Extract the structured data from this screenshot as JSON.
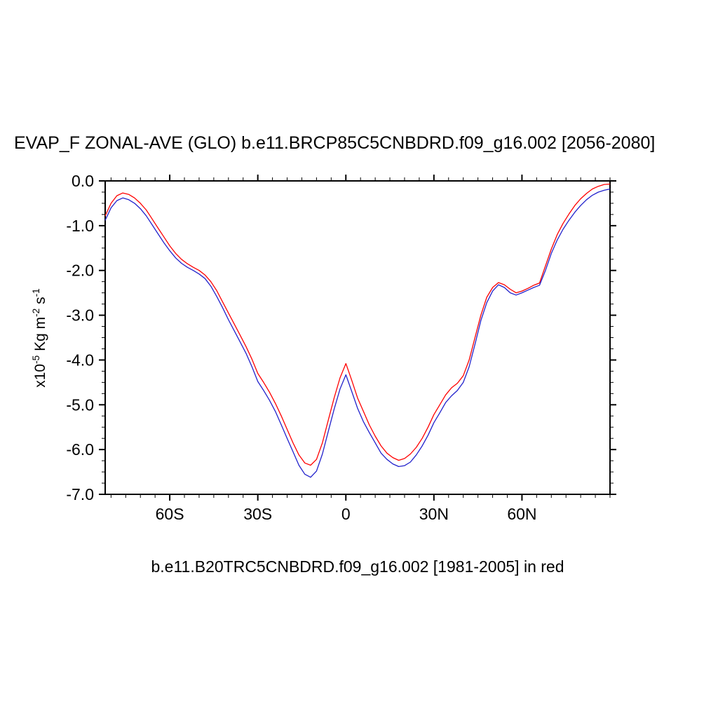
{
  "chart": {
    "title": "EVAP_F ZONAL-AVE (GLO) b.e11.BRCP85C5CNBDRD.f09_g16.002 [2056-2080]",
    "subtitle": "b.e11.B20TRC5CNBDRD.f09_g16.002 [1981-2005] in red",
    "ylabel_parts": [
      "x10",
      "-5",
      " Kg m",
      "-2",
      " s",
      "-1"
    ]
  },
  "chart_data": {
    "type": "line",
    "title": "EVAP_F ZONAL-AVE (GLO) b.e11.BRCP85C5CNBDRD.f09_g16.002 [2056-2080]",
    "subtitle": "b.e11.B20TRC5CNBDRD.f09_g16.002 [1981-2005] in red",
    "xlabel": "",
    "ylabel": "x10^-5 Kg m^-2 s^-1",
    "xlim": [
      -82,
      90
    ],
    "ylim": [
      -7,
      0
    ],
    "grid": false,
    "legend": "none",
    "x_major_ticks": [
      -60,
      -30,
      0,
      30,
      60
    ],
    "x_major_labels": [
      "60S",
      "30S",
      "0",
      "30N",
      "60N"
    ],
    "x_minor_step": 5,
    "y_major_ticks": [
      0,
      -1,
      -2,
      -3,
      -4,
      -5,
      -6,
      -7
    ],
    "y_major_labels": [
      "0.0",
      "-1.0",
      "-2.0",
      "-3.0",
      "-4.0",
      "-5.0",
      "-6.0",
      "-7.0"
    ],
    "y_minor_step": 0.25,
    "x": [
      -82,
      -80,
      -78,
      -76,
      -74,
      -72,
      -70,
      -68,
      -66,
      -64,
      -62,
      -60,
      -58,
      -56,
      -54,
      -52,
      -50,
      -48,
      -46,
      -44,
      -42,
      -40,
      -38,
      -36,
      -34,
      -32,
      -30,
      -28,
      -26,
      -24,
      -22,
      -20,
      -18,
      -16,
      -14,
      -12,
      -10,
      -8,
      -6,
      -4,
      -2,
      0,
      2,
      4,
      6,
      8,
      10,
      12,
      14,
      16,
      18,
      20,
      22,
      24,
      26,
      28,
      30,
      32,
      34,
      36,
      38,
      40,
      42,
      44,
      46,
      48,
      50,
      52,
      54,
      56,
      58,
      60,
      62,
      64,
      66,
      68,
      70,
      72,
      74,
      76,
      78,
      80,
      82,
      84,
      86,
      88,
      90
    ],
    "series": [
      {
        "name": "b.e11.B20TRC5CNBDRD.f09_g16.002 [1981-2005]",
        "color": "#ff0000",
        "values": [
          -0.78,
          -0.5,
          -0.33,
          -0.27,
          -0.3,
          -0.38,
          -0.5,
          -0.65,
          -0.85,
          -1.05,
          -1.25,
          -1.45,
          -1.62,
          -1.75,
          -1.85,
          -1.93,
          -2.0,
          -2.1,
          -2.25,
          -2.45,
          -2.7,
          -2.95,
          -3.2,
          -3.45,
          -3.7,
          -3.98,
          -4.3,
          -4.5,
          -4.72,
          -4.97,
          -5.25,
          -5.55,
          -5.85,
          -6.12,
          -6.3,
          -6.35,
          -6.22,
          -5.85,
          -5.35,
          -4.85,
          -4.4,
          -4.08,
          -4.45,
          -4.85,
          -5.15,
          -5.45,
          -5.7,
          -5.92,
          -6.08,
          -6.18,
          -6.24,
          -6.2,
          -6.1,
          -5.95,
          -5.75,
          -5.5,
          -5.22,
          -5.0,
          -4.78,
          -4.62,
          -4.52,
          -4.35,
          -4.0,
          -3.5,
          -3.0,
          -2.6,
          -2.38,
          -2.27,
          -2.32,
          -2.42,
          -2.5,
          -2.46,
          -2.4,
          -2.33,
          -2.28,
          -1.9,
          -1.52,
          -1.2,
          -0.95,
          -0.74,
          -0.55,
          -0.4,
          -0.28,
          -0.18,
          -0.12,
          -0.08,
          -0.07
        ]
      },
      {
        "name": "b.e11.BRCP85C5CNBDRD.f09_g16.002 [2056-2080]",
        "color": "#2222cc",
        "values": [
          -0.88,
          -0.6,
          -0.44,
          -0.38,
          -0.42,
          -0.5,
          -0.62,
          -0.78,
          -0.98,
          -1.18,
          -1.38,
          -1.56,
          -1.72,
          -1.84,
          -1.93,
          -2.0,
          -2.08,
          -2.18,
          -2.35,
          -2.58,
          -2.83,
          -3.1,
          -3.35,
          -3.6,
          -3.85,
          -4.15,
          -4.48,
          -4.68,
          -4.9,
          -5.15,
          -5.45,
          -5.75,
          -6.05,
          -6.35,
          -6.55,
          -6.62,
          -6.48,
          -6.1,
          -5.6,
          -5.1,
          -4.65,
          -4.33,
          -4.7,
          -5.08,
          -5.38,
          -5.62,
          -5.85,
          -6.08,
          -6.22,
          -6.32,
          -6.38,
          -6.36,
          -6.28,
          -6.12,
          -5.92,
          -5.68,
          -5.4,
          -5.18,
          -4.95,
          -4.8,
          -4.68,
          -4.5,
          -4.15,
          -3.65,
          -3.12,
          -2.72,
          -2.46,
          -2.32,
          -2.38,
          -2.5,
          -2.55,
          -2.5,
          -2.44,
          -2.38,
          -2.33,
          -2.0,
          -1.62,
          -1.32,
          -1.08,
          -0.88,
          -0.7,
          -0.55,
          -0.42,
          -0.32,
          -0.25,
          -0.21,
          -0.18
        ]
      }
    ]
  }
}
